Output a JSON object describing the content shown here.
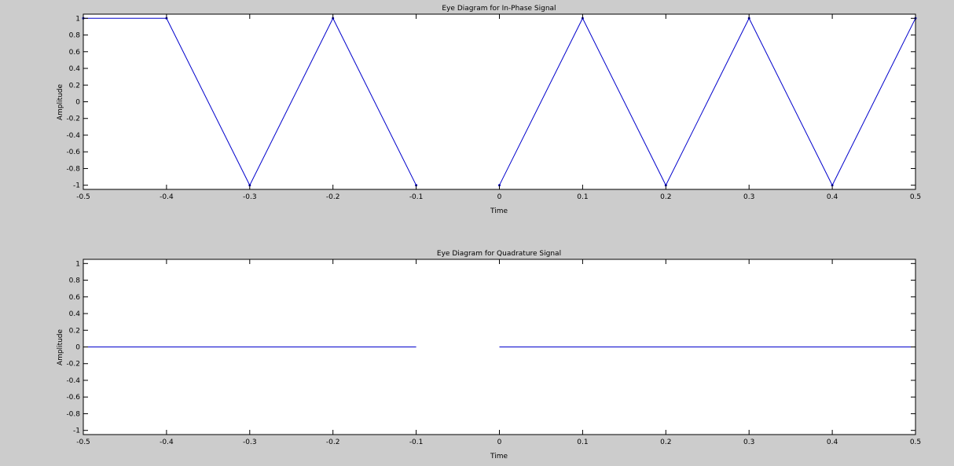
{
  "figure": {
    "background": "#cccccc",
    "axes_background": "#ffffff",
    "line_color": "#0000cc"
  },
  "chart_data": [
    {
      "type": "line",
      "title": "Eye Diagram for In-Phase Signal",
      "xlabel": "Time",
      "ylabel": "Amplitude",
      "xlim": [
        -0.5,
        0.5
      ],
      "ylim": [
        -1.05,
        1.05
      ],
      "xticks": [
        -0.5,
        -0.4,
        -0.3,
        -0.2,
        -0.1,
        0,
        0.1,
        0.2,
        0.3,
        0.4,
        0.5
      ],
      "xtick_labels": [
        "-0.5",
        "-0.4",
        "-0.3",
        "-0.2",
        "-0.1",
        "0",
        "0.1",
        "0.2",
        "0.3",
        "0.4",
        "0.5"
      ],
      "yticks": [
        -1,
        -0.8,
        -0.6,
        -0.4,
        -0.2,
        0,
        0.2,
        0.4,
        0.6,
        0.8,
        1
      ],
      "ytick_labels": [
        "-1",
        "-0.8",
        "-0.6",
        "-0.4",
        "-0.2",
        "0",
        "0.2",
        "0.4",
        "0.6",
        "0.8",
        "1"
      ],
      "grid": false,
      "markers": true,
      "series": [
        {
          "x": [
            -0.5,
            -0.4,
            -0.3,
            -0.2,
            -0.1
          ],
          "y": [
            1,
            1,
            -1,
            1,
            -1
          ]
        },
        {
          "x": [
            0,
            0.1,
            0.2,
            0.3,
            0.4,
            0.5
          ],
          "y": [
            -1,
            1,
            -1,
            1,
            -1,
            1
          ]
        }
      ]
    },
    {
      "type": "line",
      "title": "Eye Diagram for Quadrature Signal",
      "xlabel": "Time",
      "ylabel": "Amplitude",
      "xlim": [
        -0.5,
        0.5
      ],
      "ylim": [
        -1.05,
        1.05
      ],
      "xticks": [
        -0.5,
        -0.4,
        -0.3,
        -0.2,
        -0.1,
        0,
        0.1,
        0.2,
        0.3,
        0.4,
        0.5
      ],
      "xtick_labels": [
        "-0.5",
        "-0.4",
        "-0.3",
        "-0.2",
        "-0.1",
        "0",
        "0.1",
        "0.2",
        "0.3",
        "0.4",
        "0.5"
      ],
      "yticks": [
        -1,
        -0.8,
        -0.6,
        -0.4,
        -0.2,
        0,
        0.2,
        0.4,
        0.6,
        0.8,
        1
      ],
      "ytick_labels": [
        "-1",
        "-0.8",
        "-0.6",
        "-0.4",
        "-0.2",
        "0",
        "0.2",
        "0.4",
        "0.6",
        "0.8",
        "1"
      ],
      "grid": false,
      "markers": false,
      "series": [
        {
          "x": [
            -0.5,
            -0.4,
            -0.3,
            -0.2,
            -0.1
          ],
          "y": [
            0,
            0,
            0,
            0,
            0
          ]
        },
        {
          "x": [
            0,
            0.1,
            0.2,
            0.3,
            0.4,
            0.5
          ],
          "y": [
            0,
            0,
            0,
            0,
            0,
            0
          ]
        }
      ]
    }
  ]
}
